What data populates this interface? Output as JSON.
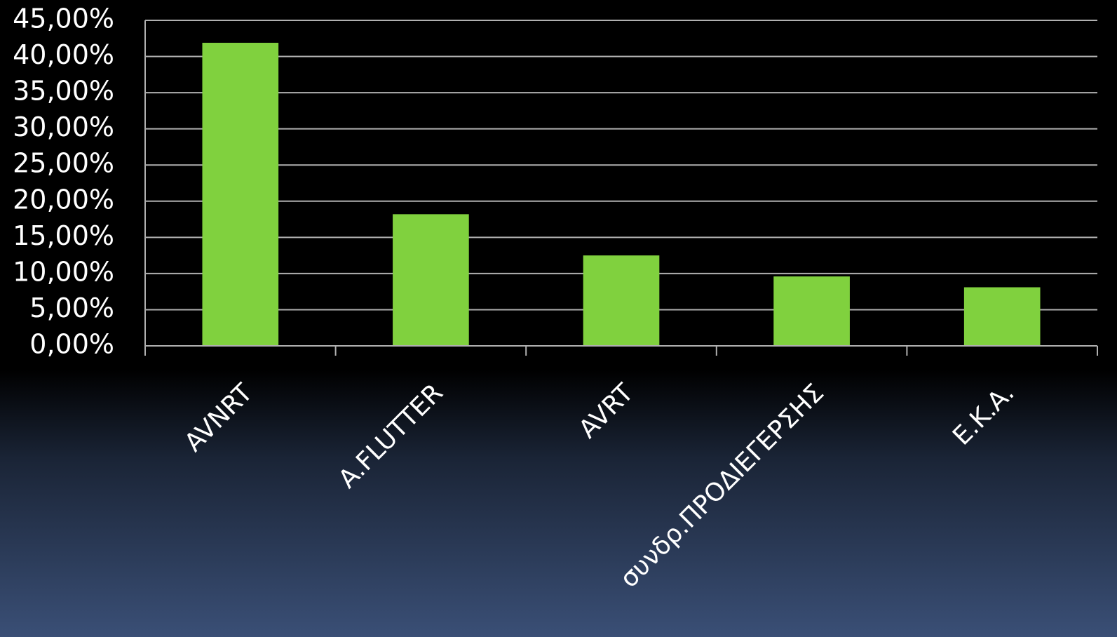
{
  "chart_data": {
    "type": "bar",
    "categories": [
      "AVNRT",
      "A.FLUTTER",
      "AVRT",
      "συνδρ.ΠΡΟΔΙΕΓΕΡΣΗΣ",
      "Ε.Κ.Α."
    ],
    "values": [
      41.9,
      18.2,
      12.5,
      9.6,
      8.1
    ],
    "color": "#80d13e",
    "ylim": [
      0,
      45
    ],
    "yticks": [
      {
        "value": 0,
        "label": "0,00%"
      },
      {
        "value": 5,
        "label": "5,00%"
      },
      {
        "value": 10,
        "label": "10,00%"
      },
      {
        "value": 15,
        "label": "15,00%"
      },
      {
        "value": 20,
        "label": "20,00%"
      },
      {
        "value": 25,
        "label": "25,00%"
      },
      {
        "value": 30,
        "label": "30,00%"
      },
      {
        "value": 35,
        "label": "35,00%"
      },
      {
        "value": 40,
        "label": "40,00%"
      },
      {
        "value": 45,
        "label": "45,00%"
      }
    ],
    "grid": true
  }
}
